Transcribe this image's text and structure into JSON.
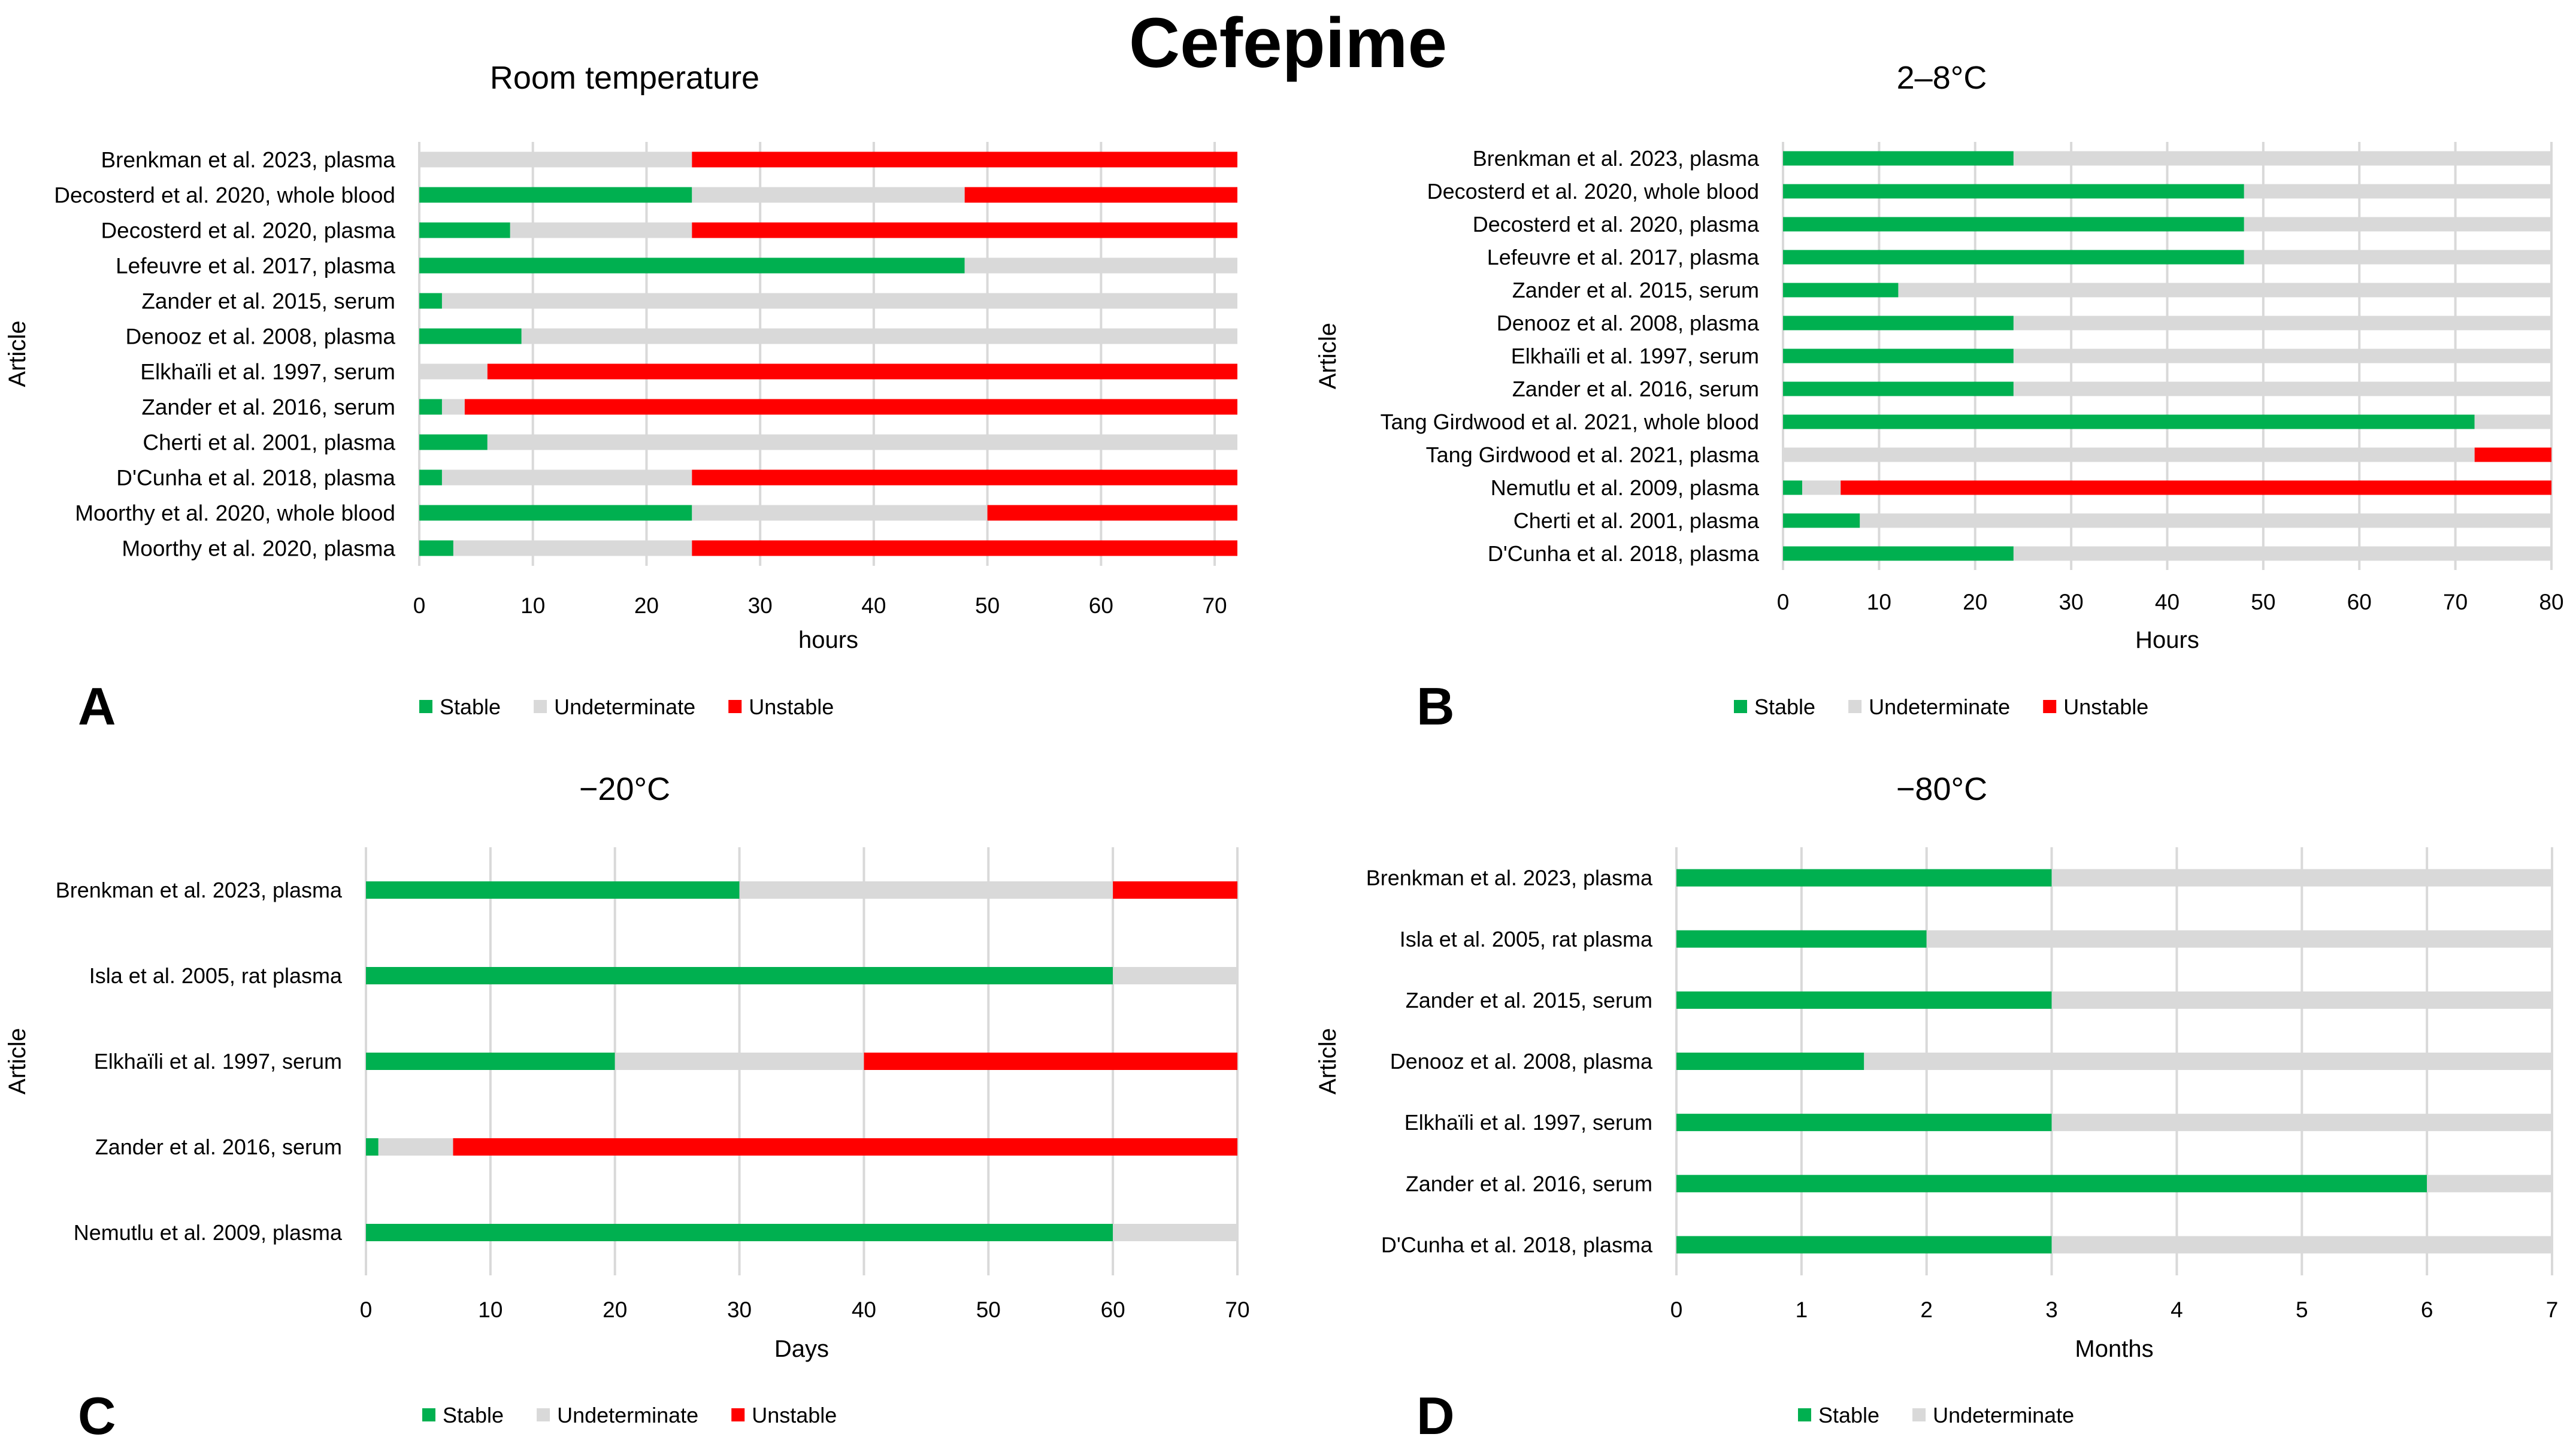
{
  "title": "Cefepime",
  "colors": {
    "stable": "#00B050",
    "undeterminate": "#D9D9D9",
    "unstable": "#FF0000",
    "grid": "#D9D9D9",
    "text": "#000000"
  },
  "legend_labels": {
    "stable": "Stable",
    "undeterminate": "Undeterminate",
    "unstable": "Unstable"
  },
  "chart_data": [
    {
      "panel_label": "A",
      "type": "bar",
      "orientation": "horizontal-stacked",
      "title": "Room temperature",
      "xlabel": "hours",
      "ylabel": "Article",
      "xlim": [
        0,
        72
      ],
      "xticks": [
        0,
        10,
        20,
        30,
        40,
        50,
        60,
        70
      ],
      "legend": [
        "Stable",
        "Undeterminate",
        "Unstable"
      ],
      "legend_position": "bottom",
      "categories": [
        "Brenkman et al. 2023, plasma",
        "Decosterd et al. 2020, whole blood",
        "Decosterd et al. 2020, plasma",
        "Lefeuvre et al. 2017, plasma",
        "Zander et al. 2015, serum",
        "Denooz et al. 2008, plasma",
        "Elkhaïli et al. 1997, serum",
        "Zander et al. 2016, serum",
        "Cherti et al. 2001, plasma",
        "D'Cunha et al. 2018, plasma",
        "Moorthy et al. 2020, whole blood",
        "Moorthy et al. 2020, plasma"
      ],
      "series": [
        {
          "name": "Stable",
          "values": [
            0,
            24,
            8,
            48,
            2,
            9,
            0,
            2,
            6,
            2,
            24,
            3
          ]
        },
        {
          "name": "Undeterminate",
          "values": [
            24,
            24,
            16,
            24,
            70,
            63,
            6,
            2,
            66,
            22,
            26,
            21
          ]
        },
        {
          "name": "Unstable",
          "values": [
            48,
            24,
            48,
            0,
            0,
            0,
            66,
            68,
            0,
            48,
            22,
            48
          ]
        }
      ]
    },
    {
      "panel_label": "B",
      "type": "bar",
      "orientation": "horizontal-stacked",
      "title": "2–8°C",
      "xlabel": "Hours",
      "ylabel": "Article",
      "xlim": [
        0,
        80
      ],
      "xticks": [
        0,
        10,
        20,
        30,
        40,
        50,
        60,
        70,
        80
      ],
      "legend": [
        "Stable",
        "Undeterminate",
        "Unstable"
      ],
      "legend_position": "bottom",
      "categories": [
        "Brenkman et al. 2023, plasma",
        "Decosterd et al. 2020, whole blood",
        "Decosterd et al. 2020, plasma",
        "Lefeuvre et al. 2017, plasma",
        "Zander et al. 2015, serum",
        "Denooz et al. 2008, plasma",
        "Elkhaïli et al. 1997, serum",
        "Zander et al. 2016, serum",
        "Tang Girdwood et al. 2021, whole blood",
        "Tang Girdwood et al. 2021, plasma",
        "Nemutlu et al. 2009, plasma",
        "Cherti et al. 2001, plasma",
        "D'Cunha et al. 2018, plasma"
      ],
      "series": [
        {
          "name": "Stable",
          "values": [
            24,
            48,
            48,
            48,
            12,
            24,
            24,
            24,
            72,
            0,
            2,
            8,
            24
          ]
        },
        {
          "name": "Undeterminate",
          "values": [
            56,
            32,
            32,
            32,
            68,
            56,
            56,
            56,
            8,
            72,
            4,
            72,
            56
          ]
        },
        {
          "name": "Unstable",
          "values": [
            0,
            0,
            0,
            0,
            0,
            0,
            0,
            0,
            0,
            8,
            74,
            0,
            0
          ]
        }
      ]
    },
    {
      "panel_label": "C",
      "type": "bar",
      "orientation": "horizontal-stacked",
      "title": "−20°C",
      "xlabel": "Days",
      "ylabel": "Article",
      "xlim": [
        0,
        70
      ],
      "xticks": [
        0,
        10,
        20,
        30,
        40,
        50,
        60,
        70
      ],
      "legend": [
        "Stable",
        "Undeterminate",
        "Unstable"
      ],
      "legend_position": "bottom",
      "categories": [
        "Brenkman et al. 2023, plasma",
        "Isla et al. 2005, rat plasma",
        "Elkhaïli et al. 1997, serum",
        "Zander et al. 2016, serum",
        "Nemutlu et al. 2009, plasma"
      ],
      "series": [
        {
          "name": "Stable",
          "values": [
            30,
            60,
            20,
            1,
            60
          ]
        },
        {
          "name": "Undeterminate",
          "values": [
            30,
            10,
            20,
            6,
            10
          ]
        },
        {
          "name": "Unstable",
          "values": [
            10,
            0,
            30,
            63,
            0
          ]
        }
      ]
    },
    {
      "panel_label": "D",
      "type": "bar",
      "orientation": "horizontal-stacked",
      "title": "−80°C",
      "xlabel": "Months",
      "ylabel": "Article",
      "xlim": [
        0,
        7
      ],
      "xticks": [
        0,
        1,
        2,
        3,
        4,
        5,
        6,
        7
      ],
      "legend": [
        "Stable",
        "Undeterminate"
      ],
      "legend_position": "bottom",
      "categories": [
        "Brenkman et al. 2023, plasma",
        "Isla et al. 2005, rat plasma",
        "Zander et al. 2015, serum",
        "Denooz et al. 2008, plasma",
        "Elkhaïli et al. 1997, serum",
        "Zander et al. 2016, serum",
        "D'Cunha et al. 2018, plasma"
      ],
      "series": [
        {
          "name": "Stable",
          "values": [
            3,
            2,
            3,
            1.5,
            3,
            6,
            3
          ]
        },
        {
          "name": "Undeterminate",
          "values": [
            4,
            5,
            4,
            5.5,
            4,
            1,
            4
          ]
        }
      ]
    }
  ]
}
